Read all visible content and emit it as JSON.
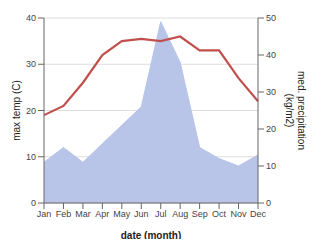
{
  "chart_data": {
    "type": "line",
    "categories": [
      "Jan",
      "Feb",
      "Mar",
      "Apr",
      "May",
      "Jun",
      "Jul",
      "Aug",
      "Sep",
      "Oct",
      "Nov",
      "Dec"
    ],
    "series": [
      {
        "type": "area",
        "axis": "y2",
        "color": "#b8c4e8",
        "values": [
          11,
          15,
          11,
          16,
          21,
          26,
          49,
          38,
          15,
          12,
          10,
          13
        ]
      },
      {
        "type": "line",
        "color": "#c0504d",
        "values": [
          19,
          21,
          26,
          32,
          35,
          35.5,
          35,
          36,
          33,
          33,
          27,
          22
        ]
      }
    ],
    "xlabel": "date (month)",
    "ylabel": "max temp (C)",
    "y2label": "med. precipitation\n(kg/m2)",
    "ylim": [
      0,
      40
    ],
    "yticks": [
      0,
      10,
      20,
      30,
      40
    ],
    "y2lim": [
      0,
      50
    ],
    "y2ticks": [
      0,
      10,
      20,
      30,
      40,
      50
    ],
    "grid": "y"
  }
}
